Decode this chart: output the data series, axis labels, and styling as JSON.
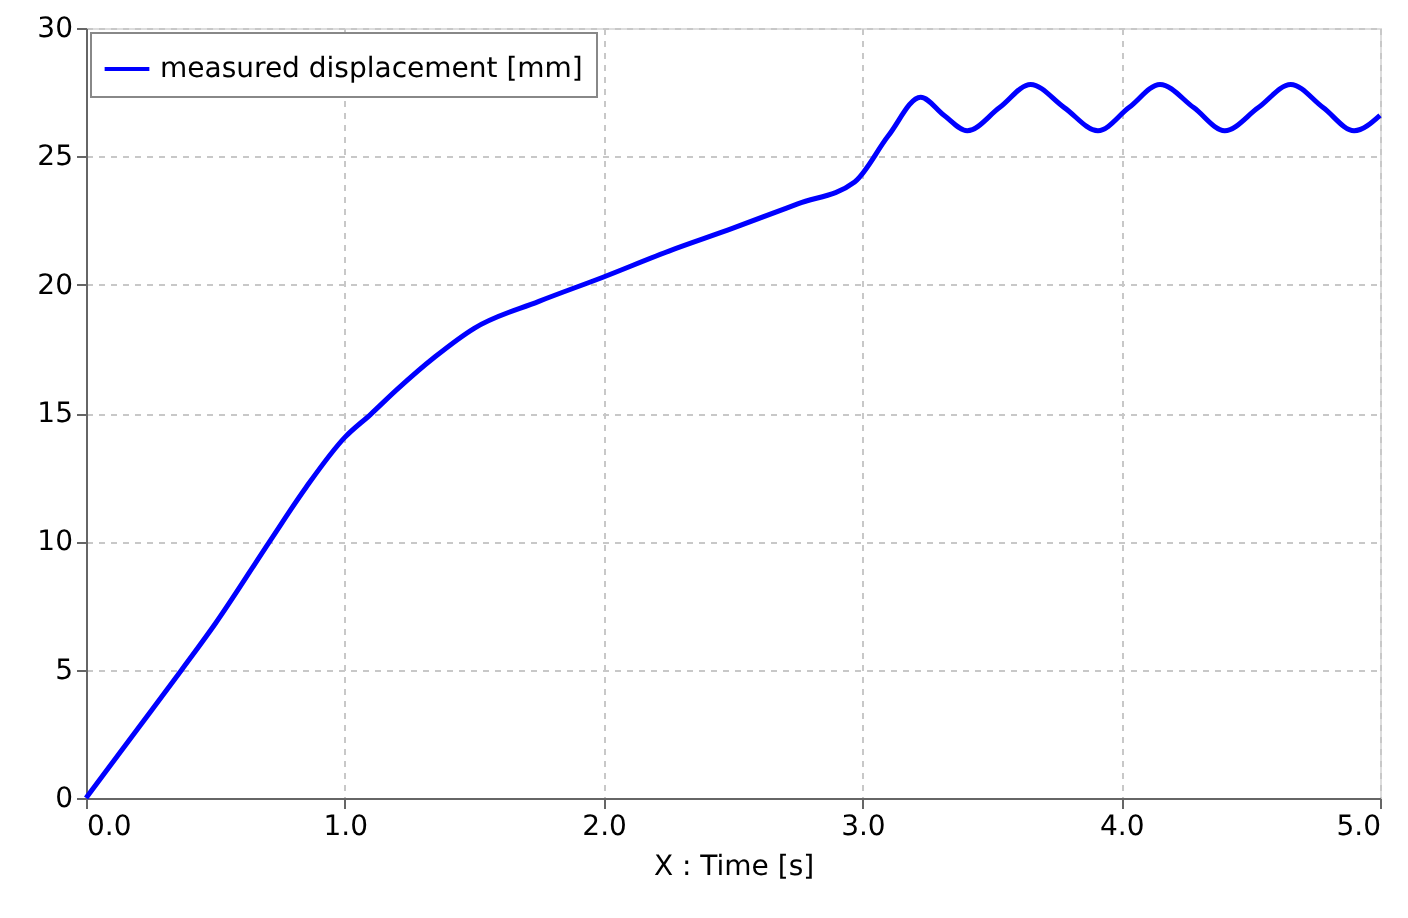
{
  "chart_data": {
    "type": "line",
    "xlabel": "X : Time [s]",
    "series": [
      {
        "name": "measured displacement [mm]",
        "color": "#0000ff",
        "x": [
          0,
          0.2,
          0.37,
          0.5,
          0.71,
          0.85,
          1.0,
          1.1,
          1.2,
          1.35,
          1.5,
          1.75,
          2.0,
          2.25,
          2.5,
          2.75,
          2.97,
          3.1,
          3.225,
          3.315,
          3.405,
          3.53,
          3.65,
          3.78,
          3.91,
          4.03,
          4.15,
          4.28,
          4.4,
          4.53,
          4.655,
          4.78,
          4.9,
          5.0
        ],
        "values": [
          0,
          2.7,
          5,
          6.8,
          10,
          12.1,
          14.05,
          14.95,
          15.9,
          17.2,
          18.3,
          19.35,
          20.3,
          21.3,
          22.2,
          23.15,
          24.0,
          25.8,
          27.3,
          26.6,
          26.0,
          26.9,
          27.8,
          26.9,
          26.0,
          26.9,
          27.8,
          26.9,
          26.0,
          26.9,
          27.8,
          26.9,
          26.0,
          26.6
        ]
      }
    ],
    "xlim": [
      0,
      5
    ],
    "ylim": [
      0,
      30
    ],
    "xticks": [
      {
        "value": 0,
        "label": "0.0"
      },
      {
        "value": 1,
        "label": "1.0"
      },
      {
        "value": 2,
        "label": "2.0"
      },
      {
        "value": 3,
        "label": "3.0"
      },
      {
        "value": 4,
        "label": "4.0"
      },
      {
        "value": 5,
        "label": "5.0"
      }
    ],
    "yticks": [
      0,
      5,
      10,
      15,
      20,
      25,
      30
    ],
    "grid": true,
    "legend": "top left",
    "marker": "none",
    "line_style": "solid"
  }
}
